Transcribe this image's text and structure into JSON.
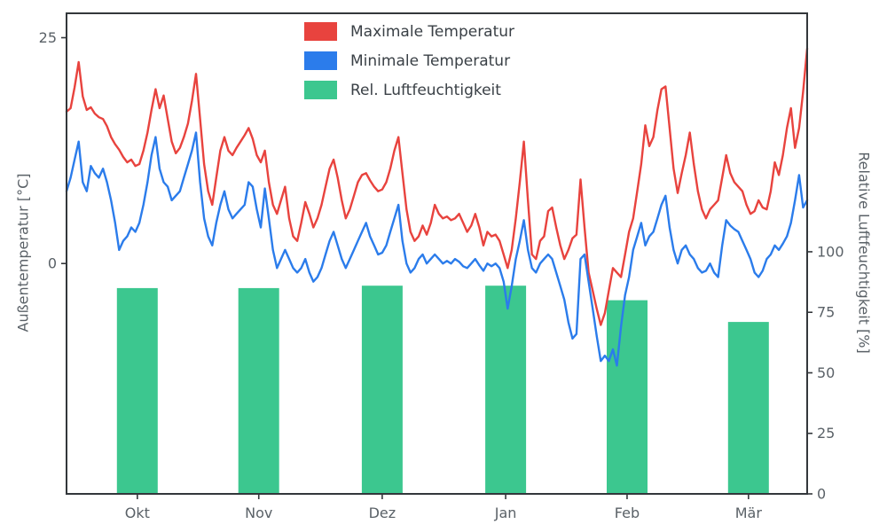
{
  "chart_data": {
    "type": "line+bar",
    "title": "",
    "grid": false,
    "legend_position": "upper center-left",
    "months": [
      "Okt",
      "Nov",
      "Dez",
      "Jan",
      "Feb",
      "Mär"
    ],
    "month_day_positions": [
      17.5,
      47.5,
      78,
      108.5,
      138.5,
      168.5
    ],
    "left_axis": {
      "label": "Außentemperatur [°C]",
      "ticks": [
        0,
        25
      ],
      "ylim": [
        -25.5,
        27.7
      ]
    },
    "right_axis": {
      "label": "Relative Luftfeuchtigkeit [%]",
      "ticks": [
        0,
        25,
        50,
        75,
        100
      ],
      "ylim": [
        0,
        198.5
      ]
    },
    "series": [
      {
        "name": "Maximale Temperatur",
        "type": "line",
        "axis": "left",
        "color": "#e8433e",
        "values": [
          16.8,
          17.2,
          19.5,
          22.3,
          18.5,
          17.0,
          17.3,
          16.6,
          16.2,
          16.0,
          15.2,
          14.0,
          13.2,
          12.6,
          11.8,
          11.2,
          11.5,
          10.8,
          11.0,
          12.5,
          14.5,
          17.0,
          19.3,
          17.2,
          18.6,
          16.0,
          13.5,
          12.2,
          12.8,
          14.0,
          15.5,
          18.0,
          21.0,
          16.0,
          11.0,
          8.0,
          6.5,
          9.5,
          12.5,
          14.0,
          12.5,
          12.0,
          12.8,
          13.5,
          14.2,
          15.0,
          13.8,
          12.0,
          11.2,
          12.5,
          9.0,
          6.5,
          5.5,
          7.0,
          8.5,
          5.0,
          3.0,
          2.5,
          4.5,
          6.8,
          5.5,
          4.0,
          5.0,
          6.5,
          8.5,
          10.5,
          11.5,
          9.5,
          7.0,
          5.0,
          6.0,
          7.5,
          9.0,
          9.8,
          10.0,
          9.2,
          8.5,
          8.0,
          8.2,
          9.0,
          10.5,
          12.5,
          14.0,
          10.0,
          6.0,
          3.5,
          2.5,
          3.0,
          4.2,
          3.2,
          4.5,
          6.5,
          5.5,
          5.0,
          5.2,
          4.8,
          5.0,
          5.5,
          4.5,
          3.5,
          4.2,
          5.5,
          4.0,
          2.0,
          3.5,
          3.0,
          3.2,
          2.5,
          1.0,
          -0.5,
          1.5,
          5.0,
          9.0,
          13.5,
          7.0,
          1.0,
          0.5,
          2.5,
          3.0,
          5.8,
          6.2,
          4.0,
          2.0,
          0.5,
          1.5,
          2.8,
          3.2,
          9.3,
          4.0,
          -1.0,
          -3.0,
          -5.0,
          -6.8,
          -5.5,
          -3.0,
          -0.5,
          -1.0,
          -1.5,
          1.0,
          3.5,
          5.0,
          8.0,
          11.0,
          15.3,
          13.0,
          14.0,
          17.0,
          19.3,
          19.6,
          15.0,
          10.5,
          7.8,
          10.0,
          12.0,
          14.5,
          11.0,
          8.0,
          6.0,
          5.0,
          6.0,
          6.5,
          7.0,
          9.5,
          12.0,
          10.0,
          9.0,
          8.5,
          8.0,
          6.5,
          5.5,
          5.8,
          7.0,
          6.2,
          6.0,
          8.0,
          11.2,
          9.8,
          12.0,
          15.0,
          17.2,
          12.8,
          15.0,
          19.0,
          23.8
        ]
      },
      {
        "name": "Minimale Temperatur",
        "type": "line",
        "axis": "left",
        "color": "#2b7ceb",
        "values": [
          8.0,
          9.5,
          11.5,
          13.5,
          9.0,
          8.0,
          10.8,
          10.0,
          9.5,
          10.5,
          9.0,
          7.0,
          4.5,
          1.5,
          2.5,
          3.0,
          4.0,
          3.5,
          4.5,
          6.5,
          9.0,
          12.0,
          14.0,
          10.5,
          9.0,
          8.5,
          7.0,
          7.5,
          8.0,
          9.5,
          11.0,
          12.5,
          14.5,
          9.0,
          5.0,
          3.0,
          2.0,
          4.5,
          6.5,
          8.0,
          6.0,
          5.0,
          5.5,
          6.0,
          6.5,
          9.0,
          8.5,
          6.0,
          4.0,
          8.3,
          5.0,
          1.5,
          -0.5,
          0.5,
          1.5,
          0.5,
          -0.5,
          -1.0,
          -0.5,
          0.5,
          -1.0,
          -2.0,
          -1.5,
          -0.5,
          1.0,
          2.5,
          3.5,
          2.0,
          0.5,
          -0.5,
          0.5,
          1.5,
          2.5,
          3.5,
          4.5,
          3.0,
          2.0,
          1.0,
          1.2,
          2.0,
          3.5,
          5.0,
          6.5,
          2.5,
          0.0,
          -1.0,
          -0.5,
          0.5,
          1.0,
          0.0,
          0.5,
          1.0,
          0.5,
          0.0,
          0.3,
          0.0,
          0.5,
          0.2,
          -0.3,
          -0.5,
          0.0,
          0.5,
          -0.2,
          -0.8,
          0.0,
          -0.3,
          0.0,
          -0.5,
          -2.0,
          -5.0,
          -2.5,
          0.5,
          2.5,
          4.8,
          1.5,
          -0.5,
          -1.0,
          0.0,
          0.5,
          1.0,
          0.5,
          -1.0,
          -2.5,
          -4.0,
          -6.5,
          -8.3,
          -7.8,
          0.5,
          1.0,
          -2.0,
          -5.0,
          -8.0,
          -10.8,
          -10.2,
          -10.8,
          -9.5,
          -11.3,
          -7.0,
          -3.5,
          -1.5,
          1.5,
          3.0,
          4.5,
          2.0,
          3.0,
          3.5,
          5.0,
          6.5,
          7.5,
          4.0,
          1.5,
          0.0,
          1.5,
          2.0,
          1.0,
          0.5,
          -0.5,
          -1.0,
          -0.8,
          0.0,
          -1.0,
          -1.5,
          2.0,
          4.8,
          4.2,
          3.8,
          3.5,
          2.5,
          1.5,
          0.5,
          -1.0,
          -1.5,
          -0.8,
          0.5,
          1.0,
          2.0,
          1.5,
          2.2,
          3.0,
          4.5,
          7.0,
          9.8,
          6.2,
          7.0
        ]
      },
      {
        "name": "Rel. Luftfeuchtigkeit",
        "type": "bar",
        "axis": "right",
        "color": "#3cc78f",
        "categories": [
          "Okt",
          "Nov",
          "Dez",
          "Jan",
          "Feb",
          "Mär"
        ],
        "values": [
          85,
          85,
          86,
          86,
          80,
          71
        ]
      }
    ]
  },
  "frame_color": "#33373b"
}
